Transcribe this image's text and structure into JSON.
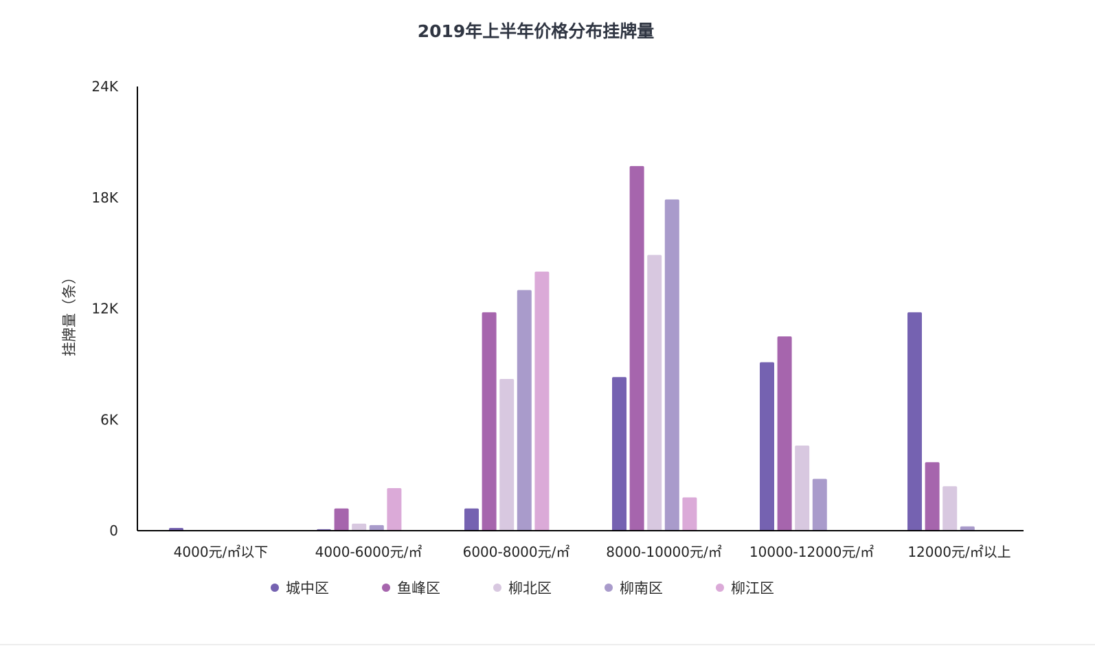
{
  "chart_data": {
    "type": "bar",
    "title": "2019年上半年价格分布挂牌量",
    "ylabel": "挂牌量（条）",
    "xlabel": "",
    "categories": [
      "4000元/㎡以下",
      "4000-6000元/㎡",
      "6000-8000元/㎡",
      "8000-10000元/㎡",
      "10000-12000元/㎡",
      "12000元/㎡以上"
    ],
    "ylim": [
      0,
      24000
    ],
    "y_ticks": [
      0,
      6000,
      12000,
      18000,
      24000
    ],
    "y_tick_labels": [
      "0",
      "6K",
      "12K",
      "18K",
      "24K"
    ],
    "grid": false,
    "legend_position": "bottom",
    "series": [
      {
        "name": "城中区",
        "color": "#7562b1",
        "values": [
          150,
          80,
          1200,
          8300,
          9100,
          11800
        ]
      },
      {
        "name": "鱼峰区",
        "color": "#a665ad",
        "values": [
          0,
          1200,
          11800,
          19700,
          10500,
          3700
        ]
      },
      {
        "name": "柳北区",
        "color": "#d8c8e0",
        "values": [
          0,
          380,
          8200,
          14900,
          4600,
          2400
        ]
      },
      {
        "name": "柳南区",
        "color": "#a99bcb",
        "values": [
          0,
          300,
          13000,
          17900,
          2800,
          230
        ]
      },
      {
        "name": "柳江区",
        "color": "#dbaad8",
        "values": [
          0,
          2300,
          14000,
          1800,
          0,
          0
        ]
      }
    ]
  }
}
